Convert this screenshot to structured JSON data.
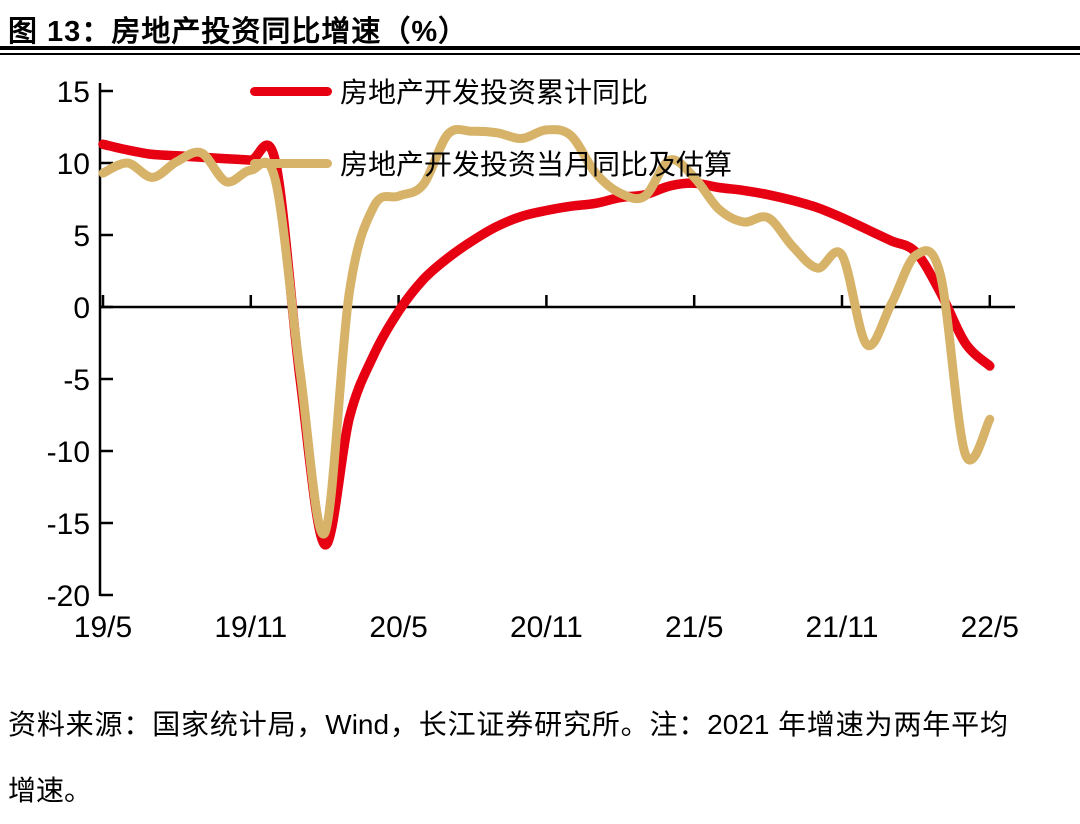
{
  "page": {
    "title": "图 13：房地产投资同比增速（%）",
    "source_note": "资料来源：国家统计局，Wind，长江证券研究所。注：2021 年增速为两年平均增速。"
  },
  "chart_data": {
    "type": "line",
    "title": "房地产投资同比增速（%）",
    "grid": "off",
    "legend_position": "top-left-inside",
    "ylim": [
      -20,
      15
    ],
    "y_ticks": [
      15,
      10,
      5,
      0,
      -5,
      -10,
      -15,
      -20
    ],
    "x_tick_labels": [
      "19/5",
      "19/11",
      "20/5",
      "20/11",
      "21/5",
      "21/11",
      "22/5"
    ],
    "x": [
      "19/5",
      "19/6",
      "19/7",
      "19/8",
      "19/9",
      "19/10",
      "19/11",
      "19/12",
      "20/1",
      "20/2",
      "20/3",
      "20/4",
      "20/5",
      "20/6",
      "20/7",
      "20/8",
      "20/9",
      "20/10",
      "20/11",
      "20/12",
      "21/1",
      "21/2",
      "21/3",
      "21/4",
      "21/5",
      "21/6",
      "21/7",
      "21/8",
      "21/9",
      "21/10",
      "21/11",
      "21/12",
      "22/1",
      "22/2",
      "22/3",
      "22/4",
      "22/5"
    ],
    "series": [
      {
        "name": "房地产开发投资累计同比",
        "color": "#e60012",
        "stroke_width": 9.5,
        "values": [
          11.3,
          10.9,
          10.6,
          10.5,
          10.4,
          10.3,
          10.2,
          10.1,
          -5.0,
          -16.5,
          -7.7,
          -3.3,
          -0.3,
          1.9,
          3.4,
          4.6,
          5.6,
          6.3,
          6.7,
          7.0,
          7.2,
          7.6,
          7.8,
          8.4,
          8.6,
          8.3,
          8.1,
          7.8,
          7.4,
          6.9,
          6.2,
          5.4,
          4.6,
          3.8,
          1.0,
          -2.5,
          -4.1
        ]
      },
      {
        "name": "房地产开发投资当月同比及估算",
        "color": "#d7b369",
        "stroke_width": 9,
        "values": [
          9.3,
          10.0,
          9.0,
          10.1,
          10.7,
          8.7,
          9.5,
          8.8,
          -4.5,
          -15.7,
          1.0,
          7.0,
          7.7,
          8.5,
          12.0,
          12.2,
          12.1,
          11.7,
          12.3,
          11.9,
          9.3,
          7.9,
          7.7,
          10.2,
          9.0,
          6.8,
          5.9,
          6.2,
          4.2,
          2.7,
          3.6,
          -2.6,
          0.2,
          3.6,
          2.2,
          -10.2,
          -7.8
        ]
      }
    ]
  }
}
